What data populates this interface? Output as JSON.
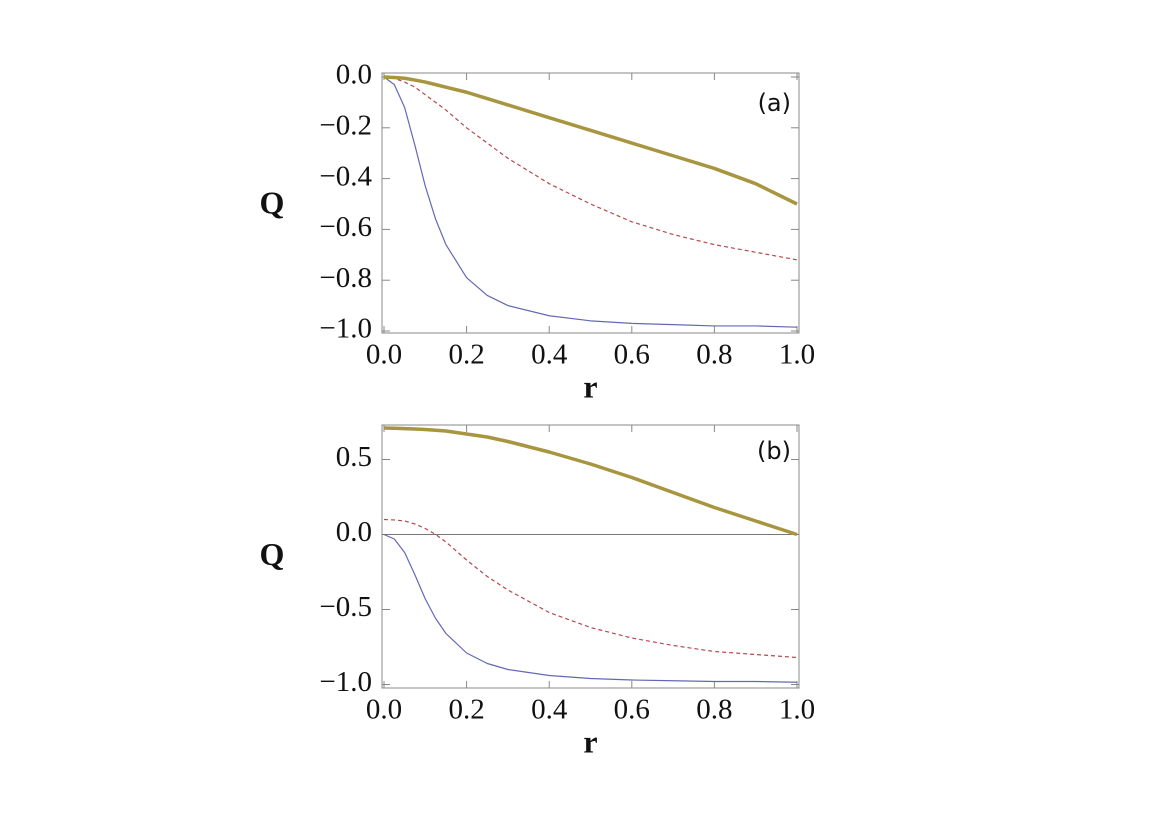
{
  "chart_data": [
    {
      "type": "line",
      "annotation": "(a)",
      "xlabel": "r",
      "ylabel": "Q",
      "x": [
        0,
        0.025,
        0.05,
        0.075,
        0.1,
        0.125,
        0.15,
        0.2,
        0.25,
        0.3,
        0.4,
        0.5,
        0.6,
        0.7,
        0.8,
        0.9,
        1.0
      ],
      "series": [
        {
          "color": "#6468b4",
          "style": "solid",
          "width": 1.2,
          "values": [
            0,
            -0.03,
            -0.12,
            -0.27,
            -0.43,
            -0.56,
            -0.66,
            -0.79,
            -0.86,
            -0.9,
            -0.94,
            -0.96,
            -0.97,
            -0.975,
            -0.98,
            -0.98,
            -0.985
          ]
        },
        {
          "color": "#b5484f",
          "style": "dashed",
          "width": 1.2,
          "values": [
            0,
            -0.005,
            -0.02,
            -0.04,
            -0.07,
            -0.1,
            -0.13,
            -0.2,
            -0.26,
            -0.32,
            -0.42,
            -0.5,
            -0.57,
            -0.62,
            -0.66,
            -0.69,
            -0.72
          ]
        },
        {
          "color": "#a8953f",
          "style": "solid",
          "width": 3.5,
          "values": [
            0,
            -0.002,
            -0.005,
            -0.012,
            -0.02,
            -0.03,
            -0.04,
            -0.06,
            -0.085,
            -0.11,
            -0.16,
            -0.21,
            -0.26,
            -0.31,
            -0.36,
            -0.42,
            -0.5
          ]
        }
      ],
      "xlim": [
        0,
        1
      ],
      "ylim": [
        -1,
        0
      ],
      "xticks": [
        {
          "value": 0,
          "label": "0.0"
        },
        0.2,
        0.4,
        0.6,
        0.8,
        {
          "value": 1,
          "label": "1.0"
        }
      ],
      "yticks": [
        {
          "value": 0,
          "label": "0.0"
        },
        {
          "value": -0.2,
          "label": "−0.2"
        },
        {
          "value": -0.4,
          "label": "−0.4"
        },
        {
          "value": -0.6,
          "label": "−0.6"
        },
        {
          "value": -0.8,
          "label": "−0.8"
        },
        {
          "value": -1,
          "label": "−1.0"
        }
      ],
      "zero_line": false
    },
    {
      "type": "line",
      "annotation": "(b)",
      "xlabel": "r",
      "ylabel": "Q",
      "x": [
        0,
        0.025,
        0.05,
        0.075,
        0.1,
        0.125,
        0.15,
        0.2,
        0.25,
        0.3,
        0.4,
        0.5,
        0.6,
        0.7,
        0.8,
        0.9,
        1.0
      ],
      "series": [
        {
          "color": "#6468b4",
          "style": "solid",
          "width": 1.2,
          "values": [
            0,
            -0.03,
            -0.12,
            -0.27,
            -0.43,
            -0.56,
            -0.66,
            -0.79,
            -0.86,
            -0.9,
            -0.94,
            -0.96,
            -0.97,
            -0.975,
            -0.98,
            -0.98,
            -0.985
          ]
        },
        {
          "color": "#b5484f",
          "style": "dashed",
          "width": 1.2,
          "values": [
            0.1,
            0.097,
            0.09,
            0.07,
            0.04,
            0.0,
            -0.05,
            -0.17,
            -0.28,
            -0.37,
            -0.52,
            -0.62,
            -0.69,
            -0.74,
            -0.78,
            -0.8,
            -0.82
          ]
        },
        {
          "color": "#a8953f",
          "style": "solid",
          "width": 3.5,
          "values": [
            0.71,
            0.708,
            0.706,
            0.703,
            0.7,
            0.695,
            0.69,
            0.67,
            0.65,
            0.62,
            0.55,
            0.47,
            0.38,
            0.28,
            0.18,
            0.09,
            0.0
          ]
        }
      ],
      "xlim": [
        0,
        1
      ],
      "ylim": [
        -1.01,
        0.73
      ],
      "xticks": [
        {
          "value": 0,
          "label": "0.0"
        },
        0.2,
        0.4,
        0.6,
        0.8,
        {
          "value": 1,
          "label": "1.0"
        }
      ],
      "yticks": [
        0.5,
        {
          "value": 0,
          "label": "0.0"
        },
        {
          "value": -0.5,
          "label": "−0.5"
        },
        {
          "value": -1,
          "label": "−1.0"
        }
      ],
      "zero_line": true
    }
  ]
}
